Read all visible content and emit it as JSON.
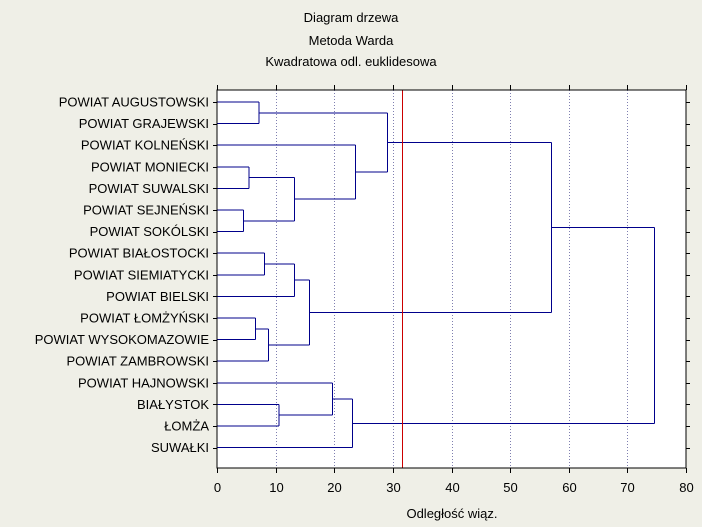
{
  "chart_data": {
    "type": "dendrogram",
    "title": [
      "Diagram drzewa",
      "Metoda Warda",
      "Kwadratowa odl. euklidesowa"
    ],
    "xlabel": "Odległość wiąz.",
    "xlim": [
      0,
      80
    ],
    "xticks": [
      0,
      10,
      20,
      30,
      40,
      50,
      60,
      70,
      80
    ],
    "grid": true,
    "cut_line": {
      "value": 31.5,
      "color": "#cc0000"
    },
    "colors": {
      "tree": "#00008b",
      "grid": "#7f7fb0",
      "frame": "#000000",
      "background": "#ffffff"
    },
    "leaves": [
      "POWIAT AUGUSTOWSKI",
      "POWIAT GRAJEWSKI",
      "POWIAT KOLNEŃSKI",
      "POWIAT MONIECKI",
      "POWIAT SUWALSKI",
      "POWIAT SEJNEŃSKI",
      "POWIAT SOKÓLSKI",
      "POWIAT BIAŁOSTOCKI",
      "POWIAT SIEMIATYCKI",
      "POWIAT BIELSKI",
      "POWIAT ŁOMŻYŃSKI",
      "POWIAT WYSOKOMAZOWIE",
      "POWIAT ZAMBROWSKI",
      "POWIAT HAJNOWSKI",
      "BIAŁYSTOK",
      "ŁOMŻA",
      "SUWAŁKI"
    ],
    "merges": [
      {
        "id": "m1",
        "left": 0,
        "right": 1,
        "height": 7.2
      },
      {
        "id": "m2",
        "left": 3,
        "right": 4,
        "height": 5.5
      },
      {
        "id": "m3",
        "left": 5,
        "right": 6,
        "height": 4.5
      },
      {
        "id": "m4",
        "left": "m2",
        "right": "m3",
        "height": 13.2
      },
      {
        "id": "m5",
        "left": 2,
        "right": "m4",
        "height": 23.6
      },
      {
        "id": "m6",
        "left": "m1",
        "right": "m5",
        "height": 29.1
      },
      {
        "id": "m7",
        "left": 7,
        "right": 8,
        "height": 8.1
      },
      {
        "id": "m8",
        "left": "m7",
        "right": 9,
        "height": 13.2
      },
      {
        "id": "m9",
        "left": 10,
        "right": 11,
        "height": 6.6
      },
      {
        "id": "m10",
        "left": "m9",
        "right": 12,
        "height": 8.8
      },
      {
        "id": "m11",
        "left": "m8",
        "right": "m10",
        "height": 15.8
      },
      {
        "id": "m12",
        "left": "m6",
        "right": "m11",
        "height": 57.1
      },
      {
        "id": "m13",
        "left": 14,
        "right": 15,
        "height": 10.6
      },
      {
        "id": "m14",
        "left": 13,
        "right": "m13",
        "height": 19.7
      },
      {
        "id": "m15",
        "left": "m14",
        "right": 16,
        "height": 23.1
      },
      {
        "id": "m16",
        "left": "m12",
        "right": "m15",
        "height": 74.6
      }
    ]
  }
}
